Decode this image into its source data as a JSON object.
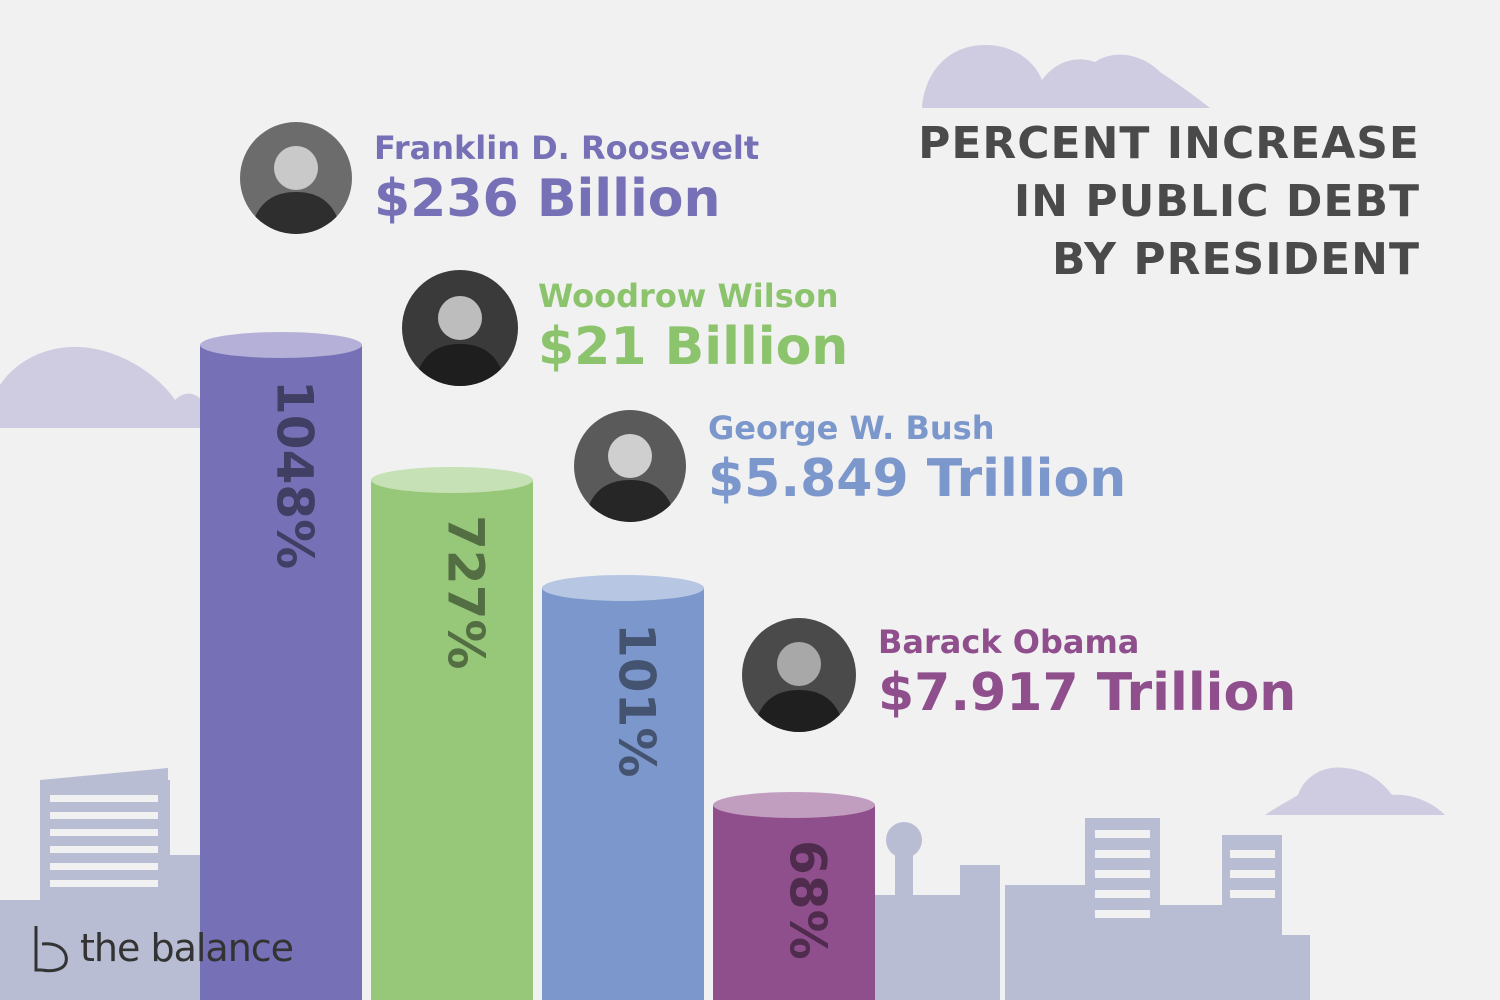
{
  "title": [
    "PERCENT INCREASE",
    "IN PUBLIC DEBT",
    "BY PRESIDENT"
  ],
  "brand": "the balance",
  "colors": {
    "background": "#f1f1f1",
    "cloud": "#cfcbe1",
    "city": "#b9bdd4",
    "title": "#4a4a4a"
  },
  "chart_data": {
    "type": "bar",
    "title": "PERCENT INCREASE IN PUBLIC DEBT BY PRESIDENT",
    "categories": [
      "Franklin D. Roosevelt",
      "Woodrow Wilson",
      "George W. Bush",
      "Barack Obama"
    ],
    "values": [
      1048,
      727,
      101,
      68
    ],
    "value_labels": [
      "1048%",
      "727%",
      "101%",
      "68%"
    ],
    "debt_added": [
      "$236 Billion",
      "$21 Billion",
      "$5.849 Trillion",
      "$7.917 Trillion"
    ],
    "bar_colors": [
      "#7670b6",
      "#97c879",
      "#7b97cc",
      "#8f4f8d"
    ],
    "label_colors": [
      "#7670b6",
      "#8bc46c",
      "#7b97cc",
      "#8f4f8d"
    ],
    "legend": "none",
    "grid": false
  },
  "presidents": [
    {
      "name": "Franklin D. Roosevelt",
      "amount": "$236 Billion",
      "portrait": "portrait-photo"
    },
    {
      "name": "Woodrow Wilson",
      "amount": "$21 Billion",
      "portrait": "portrait-photo"
    },
    {
      "name": "George W. Bush",
      "amount": "$5.849 Trillion",
      "portrait": "portrait-photo"
    },
    {
      "name": "Barack Obama",
      "amount": "$7.917 Trillion",
      "portrait": "portrait-photo"
    }
  ]
}
